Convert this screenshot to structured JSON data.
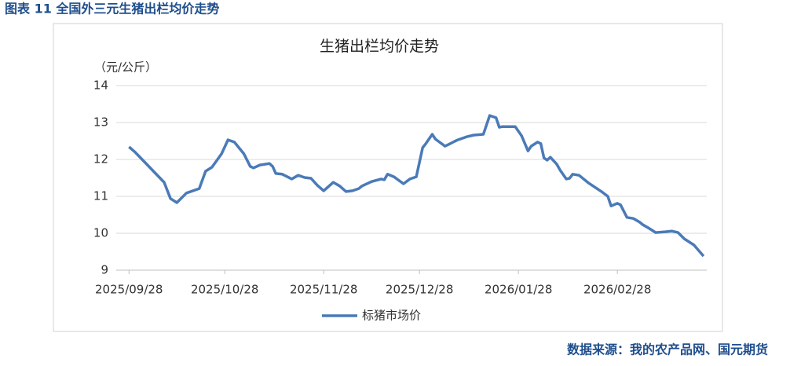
{
  "caption": "图表 11  全国外三元生猪出栏均价走势",
  "source": "数据来源：我的农产品网、国元期货",
  "chart_data": {
    "type": "line",
    "title": "生猪出栏均价走势",
    "y_label": "（元/公斤）",
    "x": [
      "2025/09/28",
      "2025/09/30",
      "2025/10/09",
      "2025/10/11",
      "2025/10/13",
      "2025/10/16",
      "2025/10/20",
      "2025/10/22",
      "2025/10/24",
      "2025/10/27",
      "2025/10/29",
      "2025/10/31",
      "2025/11/03",
      "2025/11/05",
      "2025/11/06",
      "2025/11/08",
      "2025/11/11",
      "2025/11/12",
      "2025/11/13",
      "2025/11/15",
      "2025/11/18",
      "2025/11/20",
      "2025/11/22",
      "2025/11/24",
      "2025/11/26",
      "2025/11/28",
      "2025/12/01",
      "2025/12/03",
      "2025/12/05",
      "2025/12/07",
      "2025/12/09",
      "2025/12/10",
      "2025/12/13",
      "2025/12/16",
      "2025/12/17",
      "2025/12/18",
      "2025/12/20",
      "2025/12/23",
      "2025/12/25",
      "2025/12/27",
      "2025/12/29",
      "2025/12/30",
      "2026/01/01",
      "2026/01/02",
      "2026/01/05",
      "2026/01/06",
      "2026/01/08",
      "2026/01/09",
      "2026/01/12",
      "2026/01/14",
      "2026/01/17",
      "2026/01/19",
      "2026/01/21",
      "2026/01/22",
      "2026/01/23",
      "2026/01/27",
      "2026/01/29",
      "2026/01/31",
      "2026/02/01",
      "2026/02/03",
      "2026/02/04",
      "2026/02/05",
      "2026/02/06",
      "2026/02/07",
      "2026/02/09",
      "2026/02/10",
      "2026/02/12",
      "2026/02/13",
      "2026/02/14",
      "2026/02/16",
      "2026/02/19",
      "2026/02/23",
      "2026/02/25",
      "2026/02/26",
      "2026/02/28",
      "2026/03/01",
      "2026/03/03",
      "2026/03/05",
      "2026/03/07",
      "2026/03/08",
      "2026/03/10",
      "2026/03/12",
      "2026/03/15",
      "2026/03/17",
      "2026/03/19",
      "2026/03/21",
      "2026/03/24",
      "2026/03/27"
    ],
    "series": [
      {
        "name": "标猪市场价",
        "color": "#4a7ab8",
        "values": [
          12.34,
          12.19,
          11.38,
          10.94,
          10.83,
          11.09,
          11.21,
          11.68,
          11.79,
          12.15,
          12.53,
          12.47,
          12.15,
          11.81,
          11.77,
          11.85,
          11.89,
          11.81,
          11.62,
          11.6,
          11.47,
          11.57,
          11.51,
          11.49,
          11.3,
          11.15,
          11.38,
          11.28,
          11.13,
          11.15,
          11.21,
          11.28,
          11.4,
          11.47,
          11.45,
          11.6,
          11.53,
          11.34,
          11.47,
          11.53,
          12.32,
          12.43,
          12.68,
          12.55,
          12.36,
          12.4,
          12.49,
          12.53,
          12.62,
          12.66,
          12.68,
          13.19,
          13.13,
          12.87,
          12.89,
          12.89,
          12.64,
          12.23,
          12.36,
          12.47,
          12.43,
          12.04,
          11.98,
          12.06,
          11.87,
          11.72,
          11.47,
          11.49,
          11.6,
          11.57,
          11.36,
          11.13,
          11.0,
          10.74,
          10.81,
          10.77,
          10.43,
          10.4,
          10.3,
          10.23,
          10.13,
          10.02,
          10.04,
          10.06,
          10.02,
          9.85,
          9.68,
          9.38
        ]
      }
    ],
    "xlim": [
      "2025/09/24",
      "2026/03/28"
    ],
    "xticks": [
      "2025/09/28",
      "2025/10/28",
      "2025/11/28",
      "2025/12/28",
      "2026/01/28",
      "2026/02/28"
    ],
    "ylim": [
      9,
      14
    ],
    "yticks": [
      9,
      10,
      11,
      12,
      13,
      14
    ],
    "grid": true,
    "legend": "bottom"
  }
}
